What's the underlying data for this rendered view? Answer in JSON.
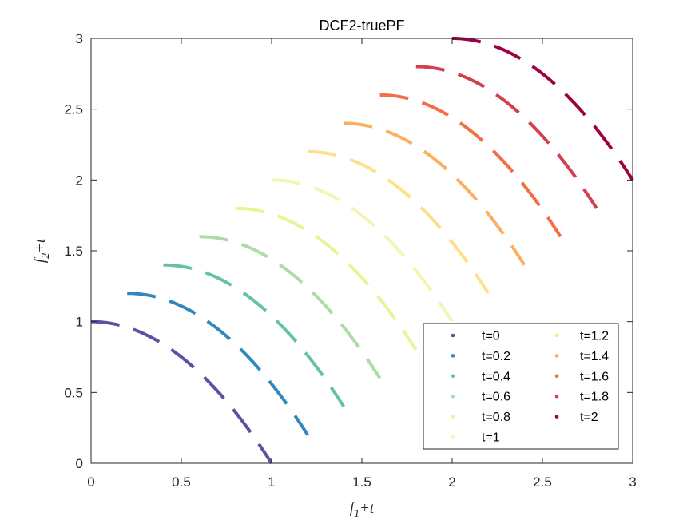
{
  "chart_data": {
    "type": "line",
    "title": "DCF2-truePF",
    "xlabel": {
      "base": "f",
      "sub": "1",
      "rest": "+t"
    },
    "ylabel": {
      "base": "f",
      "sub": "2",
      "rest": "+t"
    },
    "xlim": [
      0,
      3
    ],
    "ylim": [
      0,
      3
    ],
    "xticks": [
      "0",
      "0.5",
      "1",
      "1.5",
      "2",
      "2.5",
      "3"
    ],
    "yticks": [
      "0",
      "0.5",
      "1",
      "1.5",
      "2",
      "2.5",
      "3"
    ],
    "grid": false,
    "legend_position": "bottom-right",
    "legend_columns": 2,
    "line_style": "dashed",
    "curve_equation": "y = t + 1 - (x - t)^2, x in [t, t+1]",
    "series": [
      {
        "name": "t=0",
        "t": 0,
        "color": "#5e4fa2"
      },
      {
        "name": "t=0.2",
        "t": 0.2,
        "color": "#3288bd"
      },
      {
        "name": "t=0.4",
        "t": 0.4,
        "color": "#66c2a5"
      },
      {
        "name": "t=0.6",
        "t": 0.6,
        "color": "#abdda4"
      },
      {
        "name": "t=0.8",
        "t": 0.8,
        "color": "#e6f598"
      },
      {
        "name": "t=1",
        "t": 1,
        "color": "#f3f5b4"
      },
      {
        "name": "t=1.2",
        "t": 1.2,
        "color": "#fee08b"
      },
      {
        "name": "t=1.4",
        "t": 1.4,
        "color": "#fdae61"
      },
      {
        "name": "t=1.6",
        "t": 1.6,
        "color": "#f46d43"
      },
      {
        "name": "t=1.8",
        "t": 1.8,
        "color": "#d53e4f"
      },
      {
        "name": "t=2",
        "t": 2,
        "color": "#9e0142"
      }
    ]
  }
}
